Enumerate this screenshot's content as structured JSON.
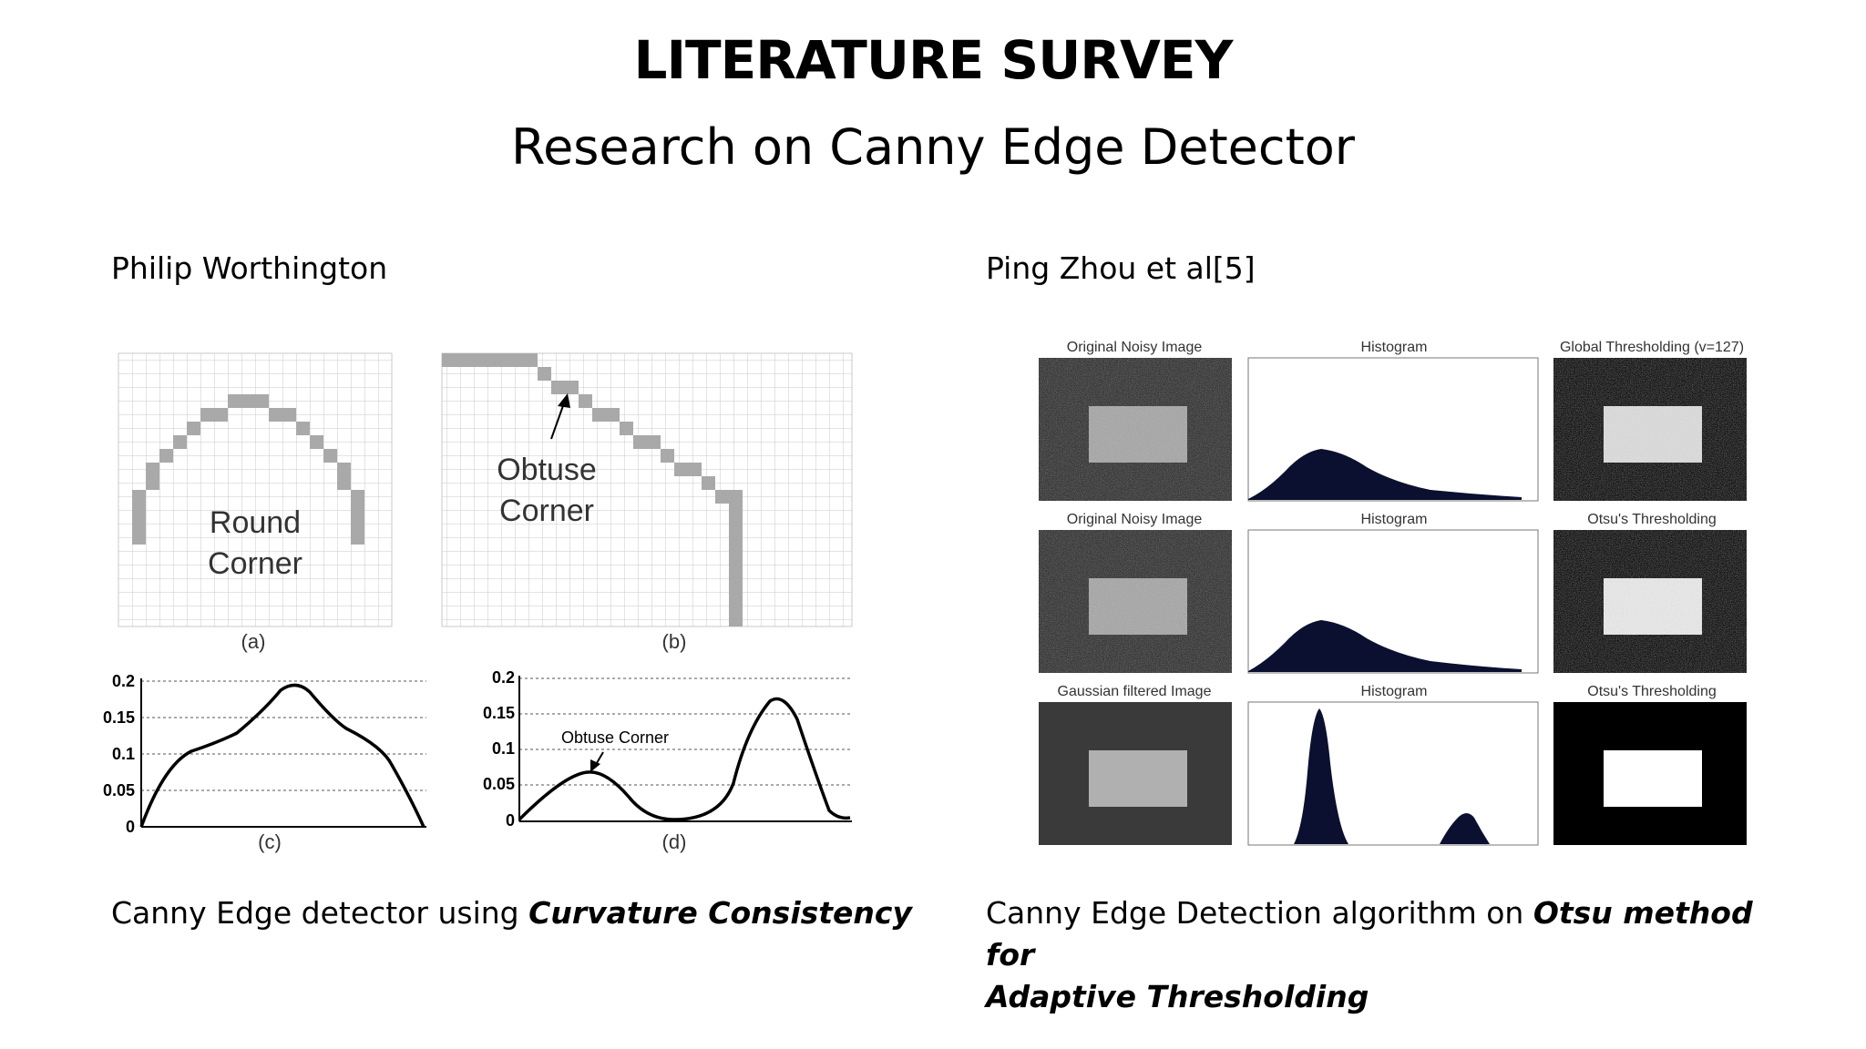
{
  "slide": {
    "title": "LITERATURE SURVEY",
    "subtitle": "Research on Canny Edge Detector"
  },
  "left": {
    "author": "Philip Worthington",
    "caption_plain": "Canny Edge detector using ",
    "caption_bold": "Curvature Consistency",
    "figure": {
      "label_a": "(a)",
      "label_b": "(b)",
      "label_c": "(c)",
      "label_d": "(d)",
      "round_line1": "Round",
      "round_line2": "Corner",
      "obtuse_line1": "Obtuse",
      "obtuse_line2": "Corner",
      "obtuse_annotation": "Obtuse Corner",
      "yticks": [
        "0.2",
        "0.15",
        "0.1",
        "0.05",
        "0"
      ]
    }
  },
  "right": {
    "author": "Ping Zhou et al[5]",
    "caption_plain": "Canny Edge Detection algorithm on ",
    "caption_bold_1": "Otsu method for",
    "caption_bold_2": "Adaptive Thresholding",
    "panels": {
      "r1c1": "Original Noisy Image",
      "r1c2": "Histogram",
      "r1c3": "Global Thresholding (v=127)",
      "r2c1": "Original Noisy Image",
      "r2c2": "Histogram",
      "r2c3": "Otsu's Thresholding",
      "r3c1": "Gaussian filtered Image",
      "r3c2": "Histogram",
      "r3c3": "Otsu's Thresholding"
    }
  },
  "colors": {
    "grid": "#c8c8c8",
    "pixel": "#a9a9a9",
    "hist_fill": "#0b1030",
    "noisy_bg": "#3c3c3c",
    "noisy_rect": "#a8a8a8"
  }
}
